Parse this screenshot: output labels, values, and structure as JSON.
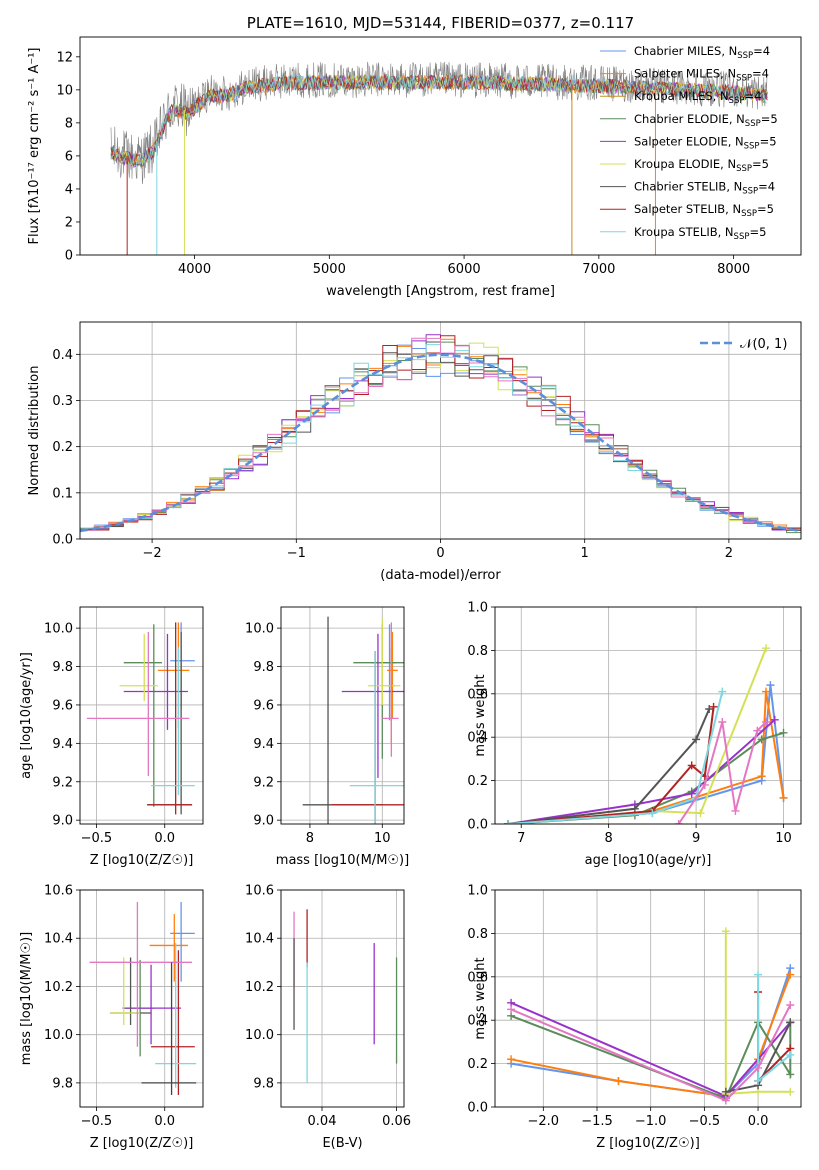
{
  "chart_data": [
    {
      "id": "spectrum",
      "type": "line",
      "title": "PLATE=1610, MJD=53144, FIBERID=0377, z=0.117",
      "xlabel": "wavelength [Angstrom, rest frame]",
      "ylabel": "Flux [fλ10⁻¹⁷ erg cm⁻² s⁻¹ A⁻¹]",
      "xlim": [
        3150,
        8500
      ],
      "ylim": [
        0,
        13.2
      ],
      "xticks": [
        4000,
        5000,
        6000,
        7000,
        8000
      ],
      "yticks": [
        0,
        2,
        4,
        6,
        8,
        10,
        12
      ],
      "grid": false,
      "legend_position": "right",
      "continuum": {
        "x": [
          3380,
          3500,
          3600,
          3700,
          3800,
          3850,
          3950,
          4050,
          4100,
          4250,
          4400,
          4600,
          4800,
          5000,
          5500,
          6000,
          6500,
          7000,
          7500,
          8000,
          8250
        ],
        "y": [
          6.3,
          6.0,
          5.8,
          6.5,
          8.5,
          9.0,
          8.7,
          9.4,
          9.8,
          9.8,
          10.3,
          10.5,
          10.6,
          10.6,
          10.6,
          10.6,
          10.5,
          10.4,
          10.2,
          10.0,
          9.8
        ]
      },
      "series": [
        {
          "name": "Chabrier MILES, N_SSP=4",
          "color": "#6495ed"
        },
        {
          "name": "Salpeter MILES, N_SSP=4",
          "color": "#ff7f0e"
        },
        {
          "name": "Kroupa MILES, N_SSP=4",
          "color": "#c88e1e"
        },
        {
          "name": "Chabrier ELODIE, N_SSP=5",
          "color": "#5b8c5a"
        },
        {
          "name": "Salpeter ELODIE, N_SSP=5",
          "color": "#9932cc"
        },
        {
          "name": "Kroupa ELODIE, N_SSP=5",
          "color": "#d4e157"
        },
        {
          "name": "Chabrier STELIB, N_SSP=4",
          "color": "#555555"
        },
        {
          "name": "Salpeter STELIB, N_SSP=5",
          "color": "#b22222"
        },
        {
          "name": "Kroupa STELIB, N_SSP=5",
          "color": "#7fd7e0"
        }
      ],
      "legend": [
        {
          "label": "Chabrier MILES, N",
          "sub": "SSP",
          "tail": "=4"
        },
        {
          "label": "Salpeter MILES, N",
          "sub": "SSP",
          "tail": "=4"
        },
        {
          "label": "Kroupa MILES, N",
          "sub": "SSP",
          "tail": "=4"
        },
        {
          "label": "Chabrier ELODIE, N",
          "sub": "SSP",
          "tail": "=5"
        },
        {
          "label": "Salpeter ELODIE, N",
          "sub": "SSP",
          "tail": "=5"
        },
        {
          "label": "Kroupa ELODIE, N",
          "sub": "SSP",
          "tail": "=5"
        },
        {
          "label": "Chabrier STELIB, N",
          "sub": "SSP",
          "tail": "=4"
        },
        {
          "label": "Salpeter STELIB, N",
          "sub": "SSP",
          "tail": "=5"
        },
        {
          "label": "Kroupa STELIB, N",
          "sub": "SSP",
          "tail": "=5"
        }
      ]
    },
    {
      "id": "residuals",
      "type": "line",
      "xlabel": "(data-model)/error",
      "ylabel": "Normed distribution",
      "xlim": [
        -2.5,
        2.5
      ],
      "ylim": [
        0,
        0.47
      ],
      "xticks": [
        -2,
        -1,
        0,
        1,
        2
      ],
      "yticks": [
        0.0,
        0.1,
        0.2,
        0.3,
        0.4
      ],
      "grid": true,
      "legend_position": "upper right",
      "gaussian": {
        "name": "𝒩(0, 1)",
        "mu": 0,
        "sigma": 1,
        "color": "#5b8fd9"
      },
      "bin_width": 0.1
    },
    {
      "id": "age_vs_Z",
      "type": "scatter",
      "xlabel": "Z [log10(Z/Z☉)]",
      "ylabel": "age [log10(age/yr)]",
      "xlim": [
        -0.62,
        0.28
      ],
      "ylim": [
        8.98,
        10.11
      ],
      "xticks": [
        -0.5,
        0.0
      ],
      "yticks": [
        9.0,
        9.2,
        9.4,
        9.6,
        9.8,
        10.0
      ],
      "grid": true,
      "points": [
        {
          "x": 0.12,
          "y": 9.83,
          "xerr": [
            0.08,
            0.1
          ],
          "yerr": [
            0.25,
            0.2
          ],
          "color": "#6495ed"
        },
        {
          "x": 0.1,
          "y": 9.78,
          "xerr": [
            0.15,
            0.08
          ],
          "yerr": [
            0.3,
            0.25
          ],
          "color": "#ff7f0e"
        },
        {
          "x": -0.08,
          "y": 9.82,
          "xerr": [
            0.22,
            0.06
          ],
          "yerr": [
            0.75,
            0.2
          ],
          "color": "#5b8c5a"
        },
        {
          "x": 0.02,
          "y": 9.67,
          "xerr": [
            0.32,
            0.15
          ],
          "yerr": [
            0.2,
            0.3
          ],
          "color": "#9932cc"
        },
        {
          "x": -0.15,
          "y": 9.7,
          "xerr": [
            0.18,
            0.1
          ],
          "yerr": [
            0.08,
            0.27
          ],
          "color": "#d4e157"
        },
        {
          "x": 0.12,
          "y": 9.08,
          "xerr": [
            0.25,
            0.08
          ],
          "yerr": [
            0.05,
            0.9
          ],
          "color": "#555555"
        },
        {
          "x": 0.08,
          "y": 9.08,
          "xerr": [
            0.2,
            0.12
          ],
          "yerr": [
            0.05,
            0.95
          ],
          "color": "#b22222"
        },
        {
          "x": 0.1,
          "y": 9.18,
          "xerr": [
            0.2,
            0.12
          ],
          "yerr": [
            0.05,
            0.72
          ],
          "color": "#7fd7e0"
        },
        {
          "x": -0.12,
          "y": 9.53,
          "xerr": [
            0.45,
            0.3
          ],
          "yerr": [
            0.3,
            0.45
          ],
          "color": "#e377c2"
        }
      ]
    },
    {
      "id": "age_vs_mass",
      "type": "scatter",
      "xlabel": "mass [log10(M/M☉)]",
      "ylabel": "",
      "xlim": [
        7.2,
        10.6
      ],
      "ylim": [
        8.98,
        10.11
      ],
      "xticks": [
        8,
        10
      ],
      "yticks": [
        9.0,
        9.2,
        9.4,
        9.6,
        9.8,
        10.0
      ],
      "grid": true,
      "points": [
        {
          "x": 10.2,
          "y": 9.82,
          "xerr": [
            0.5,
            0.2
          ],
          "yerr": [
            0.3,
            0.2
          ],
          "color": "#6495ed"
        },
        {
          "x": 10.28,
          "y": 9.78,
          "xerr": [
            0.15,
            0.15
          ],
          "yerr": [
            0.25,
            0.2
          ],
          "color": "#ff7f0e"
        },
        {
          "x": 10.25,
          "y": 9.7,
          "xerr": [
            0.1,
            0.1
          ],
          "yerr": [
            0.3,
            0.2
          ],
          "color": "#c88e1e"
        },
        {
          "x": 10.0,
          "y": 9.82,
          "xerr": [
            0.8,
            1.2
          ],
          "yerr": [
            0.5,
            0.2
          ],
          "color": "#5b8c5a"
        },
        {
          "x": 9.88,
          "y": 9.67,
          "xerr": [
            1.0,
            1.2
          ],
          "yerr": [
            0.45,
            0.3
          ],
          "color": "#9932cc"
        },
        {
          "x": 10.0,
          "y": 9.7,
          "xerr": [
            0.4,
            0.5
          ],
          "yerr": [
            0.1,
            0.35
          ],
          "color": "#d4e157"
        },
        {
          "x": 8.5,
          "y": 9.08,
          "xerr": [
            0.7,
            1.5
          ],
          "yerr": [
            0.1,
            0.98
          ],
          "color": "#555555"
        },
        {
          "x": 9.8,
          "y": 9.08,
          "xerr": [
            1.2,
            0.8
          ],
          "yerr": [
            0.1,
            0.8
          ],
          "color": "#b22222"
        },
        {
          "x": 9.8,
          "y": 9.18,
          "xerr": [
            0.7,
            1.0
          ],
          "yerr": [
            0.2,
            0.7
          ],
          "color": "#7fd7e0"
        },
        {
          "x": 10.25,
          "y": 9.53,
          "xerr": [
            0.25,
            0.2
          ],
          "yerr": [
            0.2,
            0.5
          ],
          "color": "#e377c2"
        }
      ]
    },
    {
      "id": "weight_vs_age",
      "type": "line",
      "xlabel": "age [log10(age/yr)]",
      "ylabel": "mass weight",
      "xlim": [
        6.7,
        10.2
      ],
      "ylim": [
        0,
        1.0
      ],
      "xticks": [
        7,
        8,
        9,
        10
      ],
      "yticks": [
        0.0,
        0.2,
        0.4,
        0.6,
        0.8,
        1.0
      ],
      "grid": true,
      "series": [
        {
          "color": "#6495ed",
          "x": [
            6.85,
            8.5,
            9.75,
            9.85,
            10.0
          ],
          "y": [
            0.0,
            0.05,
            0.2,
            0.64,
            0.12
          ]
        },
        {
          "color": "#ff7f0e",
          "x": [
            6.85,
            8.5,
            9.75,
            9.8,
            10.0
          ],
          "y": [
            0.0,
            0.06,
            0.22,
            0.61,
            0.12
          ]
        },
        {
          "color": "#5b8c5a",
          "x": [
            6.85,
            8.3,
            8.95,
            9.75,
            10.0
          ],
          "y": [
            0.0,
            0.04,
            0.15,
            0.39,
            0.42
          ]
        },
        {
          "color": "#9932cc",
          "x": [
            6.85,
            8.3,
            8.95,
            9.9
          ],
          "y": [
            0.0,
            0.09,
            0.14,
            0.48
          ]
        },
        {
          "color": "#d4e157",
          "x": [
            6.85,
            8.5,
            9.05,
            9.8
          ],
          "y": [
            0.0,
            0.06,
            0.05,
            0.81
          ]
        },
        {
          "color": "#555555",
          "x": [
            6.85,
            8.3,
            9.0,
            9.15
          ],
          "y": [
            0.0,
            0.07,
            0.39,
            0.53
          ]
        },
        {
          "color": "#b22222",
          "x": [
            6.85,
            8.5,
            8.95,
            9.1,
            9.2
          ],
          "y": [
            0.0,
            0.06,
            0.27,
            0.22,
            0.54
          ]
        },
        {
          "color": "#7fd7e0",
          "x": [
            6.85,
            8.5,
            9.0,
            9.3
          ],
          "y": [
            0.0,
            0.05,
            0.12,
            0.61
          ]
        },
        {
          "color": "#e377c2",
          "x": [
            8.8,
            9.1,
            9.3,
            9.45,
            9.7,
            9.8
          ],
          "y": [
            0.0,
            0.18,
            0.47,
            0.06,
            0.43,
            0.47
          ]
        }
      ]
    },
    {
      "id": "mass_vs_Z",
      "type": "scatter",
      "xlabel": "Z [log10(Z/Z☉)]",
      "ylabel": "mass [log10(M/M☉)]",
      "xlim": [
        -0.62,
        0.28
      ],
      "ylim": [
        9.7,
        10.6
      ],
      "xticks": [
        -0.5,
        0.0
      ],
      "yticks": [
        9.8,
        10.0,
        10.2,
        10.4,
        10.6
      ],
      "grid": true,
      "points": [
        {
          "x": 0.12,
          "y": 10.42,
          "xerr": [
            0.08,
            0.1
          ],
          "yerr": [
            0.2,
            0.13
          ],
          "color": "#6495ed"
        },
        {
          "x": 0.07,
          "y": 10.37,
          "xerr": [
            0.18,
            0.1
          ],
          "yerr": [
            0.15,
            0.13
          ],
          "color": "#ff7f0e"
        },
        {
          "x": -0.18,
          "y": 10.11,
          "xerr": [
            0.13,
            0.1
          ],
          "yerr": [
            0.2,
            0.2
          ],
          "color": "#5b8c5a"
        },
        {
          "x": -0.1,
          "y": 10.11,
          "xerr": [
            0.2,
            0.22
          ],
          "yerr": [
            0.15,
            0.18
          ],
          "color": "#9932cc"
        },
        {
          "x": -0.25,
          "y": 10.09,
          "xerr": [
            0.15,
            0.15
          ],
          "yerr": [
            0.05,
            0.23
          ],
          "color": "#555555"
        },
        {
          "x": -0.3,
          "y": 10.09,
          "xerr": [
            0.1,
            0.12
          ],
          "yerr": [
            0.05,
            0.23
          ],
          "color": "#d4e157"
        },
        {
          "x": 0.1,
          "y": 9.95,
          "xerr": [
            0.2,
            0.12
          ],
          "yerr": [
            0.2,
            0.4
          ],
          "color": "#b22222"
        },
        {
          "x": 0.08,
          "y": 9.88,
          "xerr": [
            0.15,
            0.15
          ],
          "yerr": [
            0.1,
            0.5
          ],
          "color": "#7fd7e0"
        },
        {
          "x": -0.2,
          "y": 10.3,
          "xerr": [
            0.35,
            0.4
          ],
          "yerr": [
            0.35,
            0.25
          ],
          "color": "#e377c2"
        },
        {
          "x": 0.05,
          "y": 9.8,
          "xerr": [
            0.22,
            0.18
          ],
          "yerr": [
            0.05,
            0.5
          ],
          "color": "#444444"
        }
      ]
    },
    {
      "id": "mass_vs_EBV",
      "type": "scatter",
      "xlabel": "E(B-V)",
      "ylabel": "",
      "xlim": [
        0.029,
        0.062
      ],
      "ylim": [
        9.7,
        10.6
      ],
      "xticks": [
        0.04,
        0.06
      ],
      "yticks": [
        9.8,
        10.0,
        10.2,
        10.4,
        10.6
      ],
      "grid": true,
      "points": [
        {
          "x": 0.0325,
          "y": 10.3,
          "yerr": [
            0.1,
            0.21
          ],
          "color": "#e377c2"
        },
        {
          "x": 0.0325,
          "y": 10.3,
          "yerr": [
            0.28,
            0.1
          ],
          "color": "#555555"
        },
        {
          "x": 0.036,
          "y": 10.4,
          "yerr": [
            0.12,
            0.12
          ],
          "color": "#b22222"
        },
        {
          "x": 0.036,
          "y": 10.1,
          "yerr": [
            0.3,
            0.2
          ],
          "color": "#7fd7e0"
        },
        {
          "x": 0.054,
          "y": 10.17,
          "yerr": [
            0.21,
            0.21
          ],
          "color": "#9932cc"
        },
        {
          "x": 0.06,
          "y": 10.1,
          "yerr": [
            0.22,
            0.22
          ],
          "color": "#5b8c5a"
        }
      ]
    },
    {
      "id": "weight_vs_Z",
      "type": "line",
      "xlabel": "Z [log10(Z/Z☉)]",
      "ylabel": "mass weight",
      "xlim": [
        -2.45,
        0.4
      ],
      "ylim": [
        0,
        1.0
      ],
      "xticks": [
        -2.0,
        -1.5,
        -1.0,
        -0.5,
        0.0
      ],
      "yticks": [
        0.0,
        0.2,
        0.4,
        0.6,
        0.8,
        1.0
      ],
      "grid": true,
      "series": [
        {
          "color": "#6495ed",
          "x": [
            -2.3,
            -1.3,
            -0.3,
            0.0,
            0.3
          ],
          "y": [
            0.2,
            0.12,
            0.05,
            0.2,
            0.64
          ]
        },
        {
          "color": "#ff7f0e",
          "x": [
            -2.3,
            -1.3,
            -0.3,
            0.0,
            0.3
          ],
          "y": [
            0.22,
            0.12,
            0.05,
            0.22,
            0.61
          ]
        },
        {
          "color": "#5b8c5a",
          "x": [
            -2.3,
            -0.3,
            0.0,
            0.3,
            0.3
          ],
          "y": [
            0.42,
            0.04,
            0.39,
            0.15,
            0.39
          ]
        },
        {
          "color": "#9932cc",
          "x": [
            -2.3,
            -0.3,
            0.3
          ],
          "y": [
            0.48,
            0.05,
            0.39
          ]
        },
        {
          "color": "#d4e157",
          "x": [
            -0.3,
            -0.3,
            0.0,
            0.3
          ],
          "y": [
            0.81,
            0.06,
            0.07,
            0.07
          ]
        },
        {
          "color": "#555555",
          "x": [
            -0.3,
            0.0,
            0.3
          ],
          "y": [
            0.07,
            0.1,
            0.39
          ]
        },
        {
          "color": "#b22222",
          "x": [
            0.0,
            0.0,
            0.3
          ],
          "y": [
            0.53,
            0.12,
            0.27
          ]
        },
        {
          "color": "#7fd7e0",
          "x": [
            0.0,
            0.0,
            0.3
          ],
          "y": [
            0.61,
            0.12,
            0.24
          ]
        },
        {
          "color": "#e377c2",
          "x": [
            -2.3,
            -0.3,
            0.0,
            0.3
          ],
          "y": [
            0.45,
            0.03,
            0.18,
            0.47
          ]
        }
      ]
    }
  ]
}
